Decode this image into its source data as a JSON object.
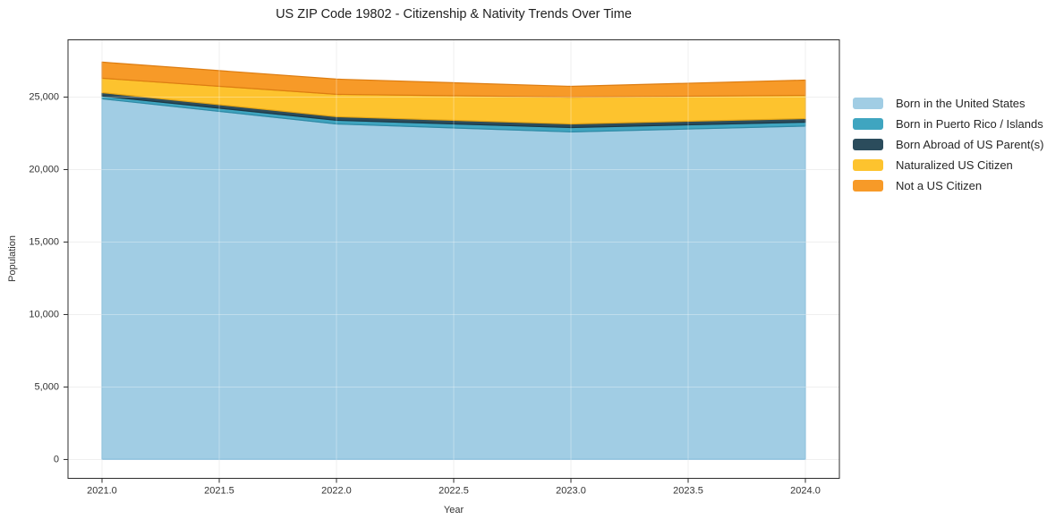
{
  "title": "US ZIP Code 19802 - Citizenship & Nativity Trends Over Time",
  "chart_data": {
    "type": "area",
    "stacked": true,
    "title": "US ZIP Code 19802 - Citizenship & Nativity Trends Over Time",
    "xlabel": "Year",
    "ylabel": "Population",
    "x": [
      2021,
      2022,
      2023,
      2024
    ],
    "series": [
      {
        "name": "Born in the United States",
        "color": "#a1cde4",
        "edge_color": "#6fafd2",
        "values": [
          24880,
          23150,
          22600,
          23000
        ]
      },
      {
        "name": "Born in Puerto Rico / Islands",
        "color": "#3fa5c0",
        "edge_color": "#2e8aa5",
        "values": [
          190,
          250,
          300,
          270
        ]
      },
      {
        "name": "Born Abroad of US Parent(s)",
        "color": "#2b4c5c",
        "edge_color": "#1c3845",
        "values": [
          240,
          250,
          250,
          250
        ]
      },
      {
        "name": "Naturalized US Citizen",
        "color": "#fdc32e",
        "edge_color": "#e2a416",
        "values": [
          990,
          1540,
          1850,
          1600
        ]
      },
      {
        "name": "Not a US Citizen",
        "color": "#f79a28",
        "edge_color": "#dd7d12",
        "values": [
          1110,
          1050,
          740,
          1050
        ]
      }
    ],
    "xticks": {
      "values": [
        2021,
        2021.5,
        2022,
        2022.5,
        2023,
        2023.5,
        2024
      ],
      "labels": [
        "2021.0",
        "2021.5",
        "2022.0",
        "2022.5",
        "2023.0",
        "2023.5",
        "2024.0"
      ]
    },
    "yticks": {
      "values": [
        0,
        5000,
        10000,
        15000,
        20000,
        25000
      ],
      "labels": [
        "0",
        "5,000",
        "10,000",
        "15,000",
        "20,000",
        "25,000"
      ]
    },
    "xlim": [
      2020.855,
      2024.145
    ],
    "ylim": [
      -1300,
      28950
    ],
    "grid": true,
    "legend_position": "right",
    "colors": {
      "background": "#ffffff",
      "grid": "#e8e8e8",
      "grid_overlay": "rgba(255,255,255,0.32)",
      "frame": "#2d2d2d",
      "tick": "#2d2d2d",
      "tick_label": "#333333",
      "title_text": "#1f1f1f",
      "legend_text": "#262626"
    },
    "fill_opacity": 1
  }
}
